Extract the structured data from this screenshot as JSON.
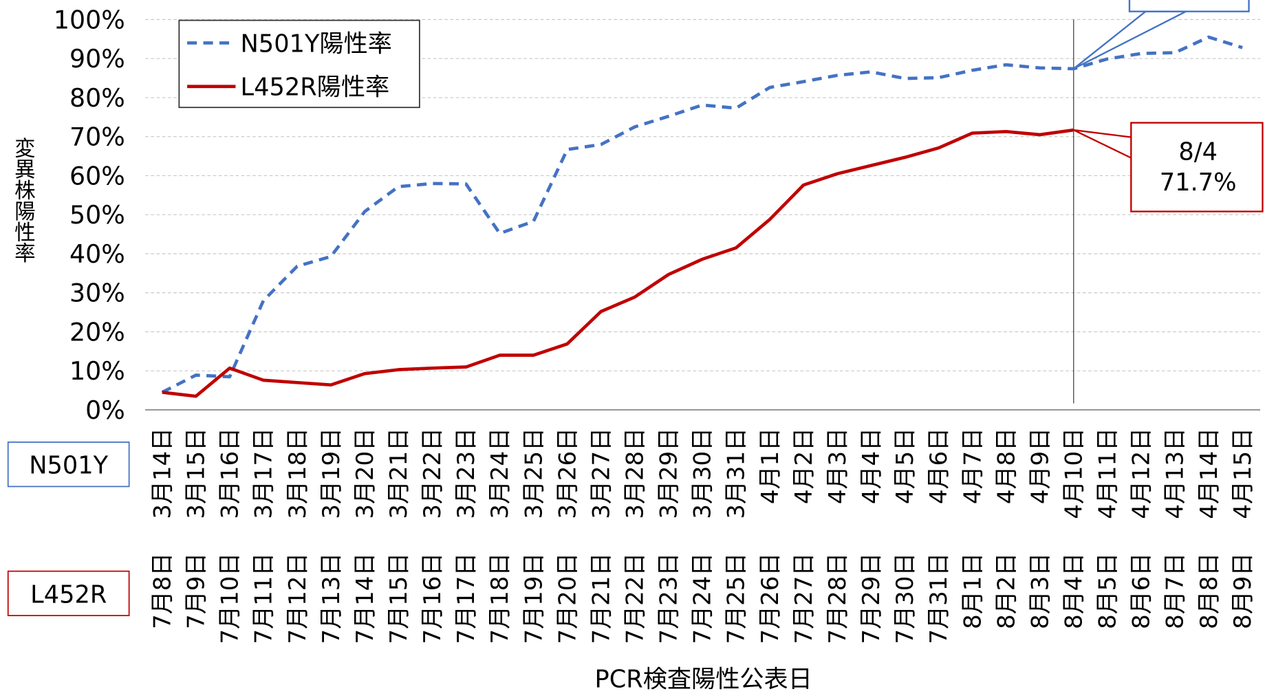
{
  "chart_data": {
    "type": "line",
    "ylabel": "変異株陽性率",
    "xlabel": "PCR検査陽性公表日",
    "category_rows": [
      {
        "name": "N501Y",
        "color": "#4472c4",
        "labels": [
          "3月14日",
          "3月15日",
          "3月16日",
          "3月17日",
          "3月18日",
          "3月19日",
          "3月20日",
          "3月21日",
          "3月22日",
          "3月23日",
          "3月24日",
          "3月25日",
          "3月26日",
          "3月27日",
          "3月28日",
          "3月29日",
          "3月30日",
          "3月31日",
          "4月1日",
          "4月2日",
          "4月3日",
          "4月4日",
          "4月5日",
          "4月6日",
          "4月7日",
          "4月8日",
          "4月9日",
          "4月10日",
          "4月11日",
          "4月12日",
          "4月13日",
          "4月14日",
          "4月15日"
        ]
      },
      {
        "name": "L452R",
        "color": "#c00000",
        "labels": [
          "7月8日",
          "7月9日",
          "7月10日",
          "7月11日",
          "7月12日",
          "7月13日",
          "7月14日",
          "7月15日",
          "7月16日",
          "7月17日",
          "7月18日",
          "7月19日",
          "7月20日",
          "7月21日",
          "7月22日",
          "7月23日",
          "7月24日",
          "7月25日",
          "7月26日",
          "7月27日",
          "7月28日",
          "7月29日",
          "7月30日",
          "7月31日",
          "8月1日",
          "8月2日",
          "8月3日",
          "8月4日",
          "8月5日",
          "8月6日",
          "8月7日",
          "8月8日",
          "8月9日"
        ]
      }
    ],
    "series": [
      {
        "name": "N501Y陽性率",
        "color": "#4472c4",
        "dash": true,
        "values": [
          4.5,
          8.9,
          8.5,
          28,
          36.8,
          39.3,
          50.8,
          57.2,
          58,
          57.9,
          45.2,
          48.3,
          66.7,
          68,
          72.5,
          75.2,
          78.1,
          77.3,
          82.6,
          84.1,
          85.7,
          86.6,
          84.9,
          85.1,
          87,
          88.4,
          87.6,
          87.4,
          89.9,
          91.3,
          91.5,
          95.5,
          92.8
        ]
      },
      {
        "name": "L452R陽性率",
        "color": "#c00000",
        "dash": false,
        "values": [
          4.5,
          3.5,
          10.7,
          7.6,
          7,
          6.4,
          9.3,
          10.3,
          10.7,
          11,
          14,
          14,
          16.9,
          25.2,
          28.9,
          34.7,
          38.6,
          41.5,
          48.8,
          57.6,
          60.5,
          62.6,
          64.7,
          67.1,
          70.9,
          71.3,
          70.5,
          71.7,
          null,
          null,
          null,
          null,
          null
        ]
      }
    ],
    "annotation": {
      "lines": [
        "8/4",
        "71.7%"
      ],
      "color": "#c00000"
    },
    "ylim": [
      0,
      100
    ],
    "yticks": [
      {
        "value": 0,
        "label": "0%"
      },
      {
        "value": 10,
        "label": "10%"
      },
      {
        "value": 20,
        "label": "20%"
      },
      {
        "value": 30,
        "label": "30%"
      },
      {
        "value": 40,
        "label": "40%"
      },
      {
        "value": 50,
        "label": "50%"
      },
      {
        "value": 60,
        "label": "60%"
      },
      {
        "value": 70,
        "label": "70%"
      },
      {
        "value": 80,
        "label": "80%"
      },
      {
        "value": 90,
        "label": "90%"
      },
      {
        "value": 100,
        "label": "100%"
      }
    ],
    "grid": true,
    "legend": "top-left"
  }
}
